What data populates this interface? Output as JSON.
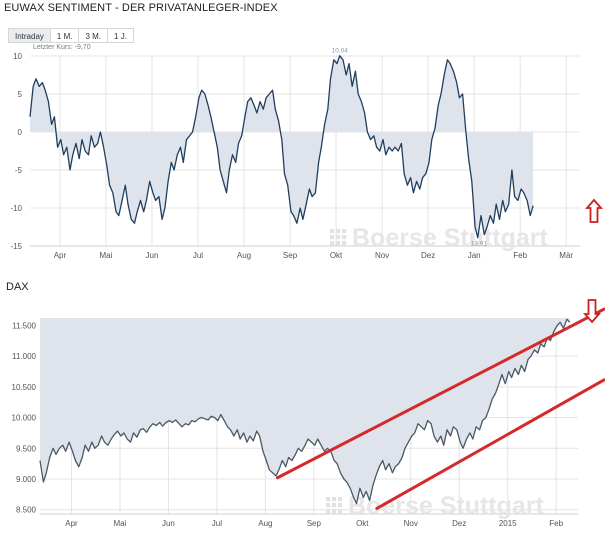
{
  "page": {
    "title": "EUWAX SENTIMENT - DER PRIVATANLEGER-INDEX",
    "tabs": [
      "Intraday",
      "1 M.",
      "3 M.",
      "1 J."
    ],
    "active_tab": 0,
    "watermark": "Boerse Stuttgart"
  },
  "chart_data": [
    {
      "name": "sentiment",
      "type": "area",
      "title": "EUWAX SENTIMENT - DER PRIVATANLEGER-INDEX",
      "last_price_label": "Letzter Kurs: -9,70",
      "peak_label": "10,04",
      "low_label": "-13,91",
      "ylim": [
        -15,
        10
      ],
      "baseline": 0,
      "y_ticks": [
        10,
        5,
        0,
        -5,
        -10,
        -15
      ],
      "x_labels": [
        "Apr",
        "Mai",
        "Jun",
        "Jul",
        "Aug",
        "Sep",
        "Okt",
        "Nov",
        "Dez",
        "Jan",
        "Feb",
        "Mär"
      ],
      "x_label_pos": [
        1,
        2,
        3,
        4,
        5,
        6,
        7,
        8,
        9,
        10,
        11,
        12
      ],
      "xlim": [
        0.35,
        12.3
      ],
      "colors": {
        "line": "#1f3e5e",
        "fill": "#dfe4ec",
        "grid": "#e4e4e4"
      },
      "arrow": {
        "direction": "up",
        "color": "#cc1f1f"
      },
      "points": [
        [
          0.35,
          2.0
        ],
        [
          0.42,
          6.0
        ],
        [
          0.48,
          7.0
        ],
        [
          0.55,
          6.0
        ],
        [
          0.62,
          6.5
        ],
        [
          0.68,
          5.5
        ],
        [
          0.75,
          4.0
        ],
        [
          0.82,
          1.0
        ],
        [
          0.88,
          2.0
        ],
        [
          0.95,
          -2.0
        ],
        [
          1.02,
          -1.0
        ],
        [
          1.08,
          -3.0
        ],
        [
          1.15,
          -2.0
        ],
        [
          1.22,
          -5.0
        ],
        [
          1.28,
          -3.0
        ],
        [
          1.35,
          -1.5
        ],
        [
          1.42,
          -3.5
        ],
        [
          1.48,
          -1.0
        ],
        [
          1.55,
          -2.5
        ],
        [
          1.62,
          -3.0
        ],
        [
          1.68,
          -0.5
        ],
        [
          1.75,
          -2.0
        ],
        [
          1.82,
          -1.5
        ],
        [
          1.88,
          0.0
        ],
        [
          1.95,
          -2.0
        ],
        [
          2.02,
          -4.5
        ],
        [
          2.08,
          -7.0
        ],
        [
          2.15,
          -8.0
        ],
        [
          2.22,
          -10.5
        ],
        [
          2.28,
          -11.0
        ],
        [
          2.35,
          -9.0
        ],
        [
          2.42,
          -7.0
        ],
        [
          2.48,
          -9.5
        ],
        [
          2.55,
          -11.5
        ],
        [
          2.62,
          -12.0
        ],
        [
          2.68,
          -10.5
        ],
        [
          2.75,
          -9.0
        ],
        [
          2.82,
          -10.5
        ],
        [
          2.88,
          -9.0
        ],
        [
          2.95,
          -6.5
        ],
        [
          3.02,
          -8.0
        ],
        [
          3.08,
          -9.0
        ],
        [
          3.15,
          -8.5
        ],
        [
          3.22,
          -11.5
        ],
        [
          3.28,
          -10.0
        ],
        [
          3.35,
          -6.5
        ],
        [
          3.42,
          -4.0
        ],
        [
          3.48,
          -5.0
        ],
        [
          3.55,
          -3.0
        ],
        [
          3.62,
          -2.0
        ],
        [
          3.68,
          -4.0
        ],
        [
          3.75,
          -1.0
        ],
        [
          3.82,
          -0.5
        ],
        [
          3.88,
          0.0
        ],
        [
          3.95,
          2.0
        ],
        [
          4.02,
          4.5
        ],
        [
          4.08,
          5.5
        ],
        [
          4.15,
          5.0
        ],
        [
          4.22,
          3.5
        ],
        [
          4.28,
          2.0
        ],
        [
          4.35,
          0.0
        ],
        [
          4.42,
          -2.0
        ],
        [
          4.48,
          -5.0
        ],
        [
          4.55,
          -6.5
        ],
        [
          4.62,
          -8.0
        ],
        [
          4.68,
          -5.0
        ],
        [
          4.75,
          -3.0
        ],
        [
          4.82,
          -4.0
        ],
        [
          4.88,
          -1.5
        ],
        [
          4.95,
          -0.5
        ],
        [
          5.02,
          2.0
        ],
        [
          5.08,
          4.0
        ],
        [
          5.15,
          4.5
        ],
        [
          5.22,
          3.5
        ],
        [
          5.28,
          2.5
        ],
        [
          5.35,
          4.0
        ],
        [
          5.42,
          3.0
        ],
        [
          5.48,
          4.5
        ],
        [
          5.55,
          5.0
        ],
        [
          5.62,
          5.5
        ],
        [
          5.68,
          3.0
        ],
        [
          5.75,
          1.5
        ],
        [
          5.82,
          -1.0
        ],
        [
          5.88,
          -5.5
        ],
        [
          5.95,
          -7.0
        ],
        [
          6.02,
          -10.5
        ],
        [
          6.08,
          -11.0
        ],
        [
          6.15,
          -12.0
        ],
        [
          6.22,
          -10.0
        ],
        [
          6.28,
          -11.5
        ],
        [
          6.35,
          -9.5
        ],
        [
          6.42,
          -7.5
        ],
        [
          6.48,
          -8.5
        ],
        [
          6.55,
          -8.0
        ],
        [
          6.62,
          -4.0
        ],
        [
          6.68,
          -2.0
        ],
        [
          6.75,
          1.0
        ],
        [
          6.82,
          3.0
        ],
        [
          6.88,
          7.0
        ],
        [
          6.95,
          9.5
        ],
        [
          7.02,
          9.0
        ],
        [
          7.08,
          10.04
        ],
        [
          7.15,
          9.5
        ],
        [
          7.22,
          7.5
        ],
        [
          7.28,
          9.0
        ],
        [
          7.35,
          6.0
        ],
        [
          7.42,
          8.0
        ],
        [
          7.48,
          5.0
        ],
        [
          7.55,
          4.0
        ],
        [
          7.62,
          2.5
        ],
        [
          7.68,
          0.0
        ],
        [
          7.75,
          -1.0
        ],
        [
          7.82,
          -0.5
        ],
        [
          7.88,
          -2.0
        ],
        [
          7.95,
          -2.5
        ],
        [
          8.02,
          -1.0
        ],
        [
          8.08,
          -3.0
        ],
        [
          8.15,
          -2.0
        ],
        [
          8.22,
          -2.5
        ],
        [
          8.28,
          -2.0
        ],
        [
          8.35,
          -2.5
        ],
        [
          8.42,
          -1.5
        ],
        [
          8.48,
          -5.5
        ],
        [
          8.55,
          -7.0
        ],
        [
          8.62,
          -6.0
        ],
        [
          8.68,
          -8.0
        ],
        [
          8.75,
          -6.5
        ],
        [
          8.82,
          -7.5
        ],
        [
          8.88,
          -6.0
        ],
        [
          8.95,
          -5.5
        ],
        [
          9.02,
          -4.0
        ],
        [
          9.08,
          -1.0
        ],
        [
          9.15,
          0.5
        ],
        [
          9.22,
          3.5
        ],
        [
          9.28,
          5.0
        ],
        [
          9.35,
          7.5
        ],
        [
          9.42,
          9.5
        ],
        [
          9.48,
          9.0
        ],
        [
          9.55,
          8.0
        ],
        [
          9.62,
          6.5
        ],
        [
          9.68,
          4.5
        ],
        [
          9.75,
          5.0
        ],
        [
          9.82,
          0.0
        ],
        [
          9.88,
          -3.5
        ],
        [
          9.95,
          -6.5
        ],
        [
          10.02,
          -12.5
        ],
        [
          10.08,
          -13.91
        ],
        [
          10.15,
          -11.0
        ],
        [
          10.22,
          -13.5
        ],
        [
          10.28,
          -12.5
        ],
        [
          10.35,
          -11.0
        ],
        [
          10.42,
          -12.0
        ],
        [
          10.48,
          -9.5
        ],
        [
          10.55,
          -11.5
        ],
        [
          10.62,
          -9.0
        ],
        [
          10.68,
          -10.5
        ],
        [
          10.75,
          -9.5
        ],
        [
          10.82,
          -5.0
        ],
        [
          10.88,
          -8.5
        ],
        [
          10.95,
          -9.0
        ],
        [
          11.02,
          -7.5
        ],
        [
          11.08,
          -8.0
        ],
        [
          11.15,
          -9.0
        ],
        [
          11.22,
          -11.0
        ],
        [
          11.28,
          -9.7
        ]
      ]
    },
    {
      "name": "dax",
      "type": "area",
      "title": "DAX",
      "ylim": [
        8430,
        11620
      ],
      "y_ticks": [
        11500,
        11000,
        10500,
        10000,
        9500,
        9000,
        8500
      ],
      "y_tick_labels": [
        "11.500",
        "11.000",
        "10.500",
        "10.000",
        "9.500",
        "9.000",
        "8.500"
      ],
      "x_labels": [
        "Apr",
        "Mai",
        "Jun",
        "Jul",
        "Aug",
        "Sep",
        "Okt",
        "Nov",
        "Dez",
        "2015",
        "Feb"
      ],
      "x_label_pos": [
        1,
        2,
        3,
        4,
        5,
        6,
        7,
        8,
        9,
        10,
        11
      ],
      "xlim": [
        0.35,
        11.45
      ],
      "colors": {
        "line": "#4a5866",
        "fill": "#dfe4ec",
        "grid": "#e4e4e4",
        "trend": "#d42a2a"
      },
      "arrow": {
        "direction": "down",
        "color": "#cc1f1f"
      },
      "trend_lines": [
        {
          "from": [
            5.25,
            9020
          ],
          "to": [
            11.45,
            11600
          ]
        },
        {
          "from": [
            7.3,
            8520
          ],
          "to": [
            11.45,
            10450
          ]
        }
      ],
      "points": [
        [
          0.35,
          9300
        ],
        [
          0.42,
          8950
        ],
        [
          0.48,
          9100
        ],
        [
          0.55,
          9350
        ],
        [
          0.62,
          9500
        ],
        [
          0.68,
          9400
        ],
        [
          0.75,
          9500
        ],
        [
          0.82,
          9550
        ],
        [
          0.88,
          9450
        ],
        [
          0.95,
          9600
        ],
        [
          1.02,
          9450
        ],
        [
          1.08,
          9300
        ],
        [
          1.15,
          9200
        ],
        [
          1.22,
          9350
        ],
        [
          1.28,
          9550
        ],
        [
          1.35,
          9450
        ],
        [
          1.42,
          9600
        ],
        [
          1.48,
          9500
        ],
        [
          1.55,
          9550
        ],
        [
          1.62,
          9700
        ],
        [
          1.68,
          9600
        ],
        [
          1.75,
          9550
        ],
        [
          1.82,
          9650
        ],
        [
          1.88,
          9720
        ],
        [
          1.95,
          9780
        ],
        [
          2.02,
          9700
        ],
        [
          2.08,
          9750
        ],
        [
          2.15,
          9650
        ],
        [
          2.22,
          9600
        ],
        [
          2.28,
          9750
        ],
        [
          2.35,
          9680
        ],
        [
          2.42,
          9800
        ],
        [
          2.48,
          9820
        ],
        [
          2.55,
          9760
        ],
        [
          2.62,
          9850
        ],
        [
          2.68,
          9900
        ],
        [
          2.75,
          9870
        ],
        [
          2.82,
          9920
        ],
        [
          2.88,
          9860
        ],
        [
          2.95,
          9920
        ],
        [
          3.02,
          9950
        ],
        [
          3.08,
          9920
        ],
        [
          3.15,
          9960
        ],
        [
          3.22,
          9900
        ],
        [
          3.28,
          9850
        ],
        [
          3.35,
          9900
        ],
        [
          3.42,
          9880
        ],
        [
          3.48,
          9950
        ],
        [
          3.55,
          9930
        ],
        [
          3.62,
          9980
        ],
        [
          3.68,
          10000
        ],
        [
          3.75,
          9980
        ],
        [
          3.82,
          9960
        ],
        [
          3.88,
          10020
        ],
        [
          3.95,
          10000
        ],
        [
          4.02,
          9950
        ],
        [
          4.08,
          10050
        ],
        [
          4.15,
          9950
        ],
        [
          4.22,
          9850
        ],
        [
          4.28,
          9800
        ],
        [
          4.35,
          9700
        ],
        [
          4.42,
          9800
        ],
        [
          4.48,
          9650
        ],
        [
          4.55,
          9750
        ],
        [
          4.62,
          9600
        ],
        [
          4.68,
          9700
        ],
        [
          4.75,
          9620
        ],
        [
          4.82,
          9780
        ],
        [
          4.88,
          9700
        ],
        [
          4.95,
          9450
        ],
        [
          5.02,
          9300
        ],
        [
          5.08,
          9150
        ],
        [
          5.15,
          9100
        ],
        [
          5.22,
          9050
        ],
        [
          5.28,
          9150
        ],
        [
          5.35,
          9300
        ],
        [
          5.42,
          9200
        ],
        [
          5.48,
          9350
        ],
        [
          5.55,
          9300
        ],
        [
          5.62,
          9400
        ],
        [
          5.68,
          9500
        ],
        [
          5.75,
          9450
        ],
        [
          5.82,
          9550
        ],
        [
          5.88,
          9650
        ],
        [
          5.95,
          9600
        ],
        [
          6.02,
          9550
        ],
        [
          6.08,
          9650
        ],
        [
          6.15,
          9550
        ],
        [
          6.22,
          9450
        ],
        [
          6.28,
          9500
        ],
        [
          6.35,
          9450
        ],
        [
          6.42,
          9300
        ],
        [
          6.48,
          9250
        ],
        [
          6.55,
          9100
        ],
        [
          6.62,
          9000
        ],
        [
          6.68,
          8950
        ],
        [
          6.75,
          8850
        ],
        [
          6.82,
          8700
        ],
        [
          6.88,
          8600
        ],
        [
          6.95,
          8850
        ],
        [
          7.02,
          8700
        ],
        [
          7.08,
          8800
        ],
        [
          7.15,
          8650
        ],
        [
          7.22,
          8900
        ],
        [
          7.28,
          9050
        ],
        [
          7.35,
          9200
        ],
        [
          7.42,
          9300
        ],
        [
          7.48,
          9150
        ],
        [
          7.55,
          9250
        ],
        [
          7.62,
          9100
        ],
        [
          7.68,
          9200
        ],
        [
          7.75,
          9250
        ],
        [
          7.82,
          9350
        ],
        [
          7.88,
          9500
        ],
        [
          7.95,
          9600
        ],
        [
          8.02,
          9700
        ],
        [
          8.08,
          9750
        ],
        [
          8.15,
          9900
        ],
        [
          8.22,
          9850
        ],
        [
          8.28,
          9800
        ],
        [
          8.35,
          9950
        ],
        [
          8.42,
          9900
        ],
        [
          8.48,
          9700
        ],
        [
          8.55,
          9600
        ],
        [
          8.62,
          9700
        ],
        [
          8.68,
          9550
        ],
        [
          8.75,
          9800
        ],
        [
          8.82,
          9700
        ],
        [
          8.88,
          9850
        ],
        [
          8.95,
          9800
        ],
        [
          9.02,
          9600
        ],
        [
          9.08,
          9500
        ],
        [
          9.15,
          9650
        ],
        [
          9.22,
          9750
        ],
        [
          9.28,
          9650
        ],
        [
          9.35,
          9850
        ],
        [
          9.42,
          9800
        ],
        [
          9.48,
          9950
        ],
        [
          9.55,
          10000
        ],
        [
          9.62,
          10150
        ],
        [
          9.68,
          10300
        ],
        [
          9.75,
          10400
        ],
        [
          9.82,
          10550
        ],
        [
          9.88,
          10700
        ],
        [
          9.95,
          10550
        ],
        [
          10.02,
          10750
        ],
        [
          10.08,
          10650
        ],
        [
          10.15,
          10800
        ],
        [
          10.22,
          10700
        ],
        [
          10.28,
          10850
        ],
        [
          10.35,
          10750
        ],
        [
          10.42,
          10950
        ],
        [
          10.48,
          11000
        ],
        [
          10.55,
          11100
        ],
        [
          10.62,
          11050
        ],
        [
          10.68,
          11200
        ],
        [
          10.75,
          11150
        ],
        [
          10.82,
          11300
        ],
        [
          10.88,
          11250
        ],
        [
          10.95,
          11400
        ],
        [
          11.02,
          11500
        ],
        [
          11.08,
          11550
        ],
        [
          11.15,
          11450
        ],
        [
          11.22,
          11600
        ],
        [
          11.28,
          11550
        ]
      ]
    }
  ]
}
